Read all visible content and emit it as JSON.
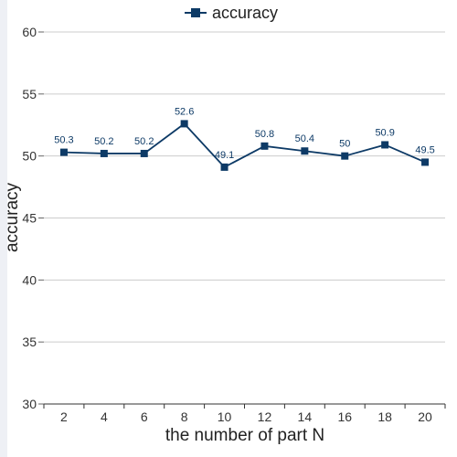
{
  "chart_data": {
    "type": "line",
    "title": "",
    "xlabel": "the number of part N",
    "ylabel": "accuracy",
    "x": [
      2,
      4,
      6,
      8,
      10,
      12,
      14,
      16,
      18,
      20
    ],
    "x_tick_labels": [
      "2",
      "4",
      "6",
      "8",
      "10",
      "12",
      "14",
      "16",
      "18",
      "20"
    ],
    "ylim": [
      30,
      60
    ],
    "y_ticks": [
      30,
      35,
      40,
      45,
      50,
      55,
      60
    ],
    "y_tick_labels": [
      "30",
      "35",
      "40",
      "45",
      "50",
      "55",
      "60"
    ],
    "grid": true,
    "legend_position": "top-center",
    "series": [
      {
        "name": "accuracy",
        "values": [
          50.3,
          50.2,
          50.2,
          52.6,
          49.1,
          50.8,
          50.4,
          50,
          50.9,
          49.5
        ],
        "data_labels": [
          "50.3",
          "50.2",
          "50.2",
          "52.6",
          "49.1",
          "50.8",
          "50.4",
          "50",
          "50.9",
          "49.5"
        ],
        "color": "#0d3a66",
        "marker": "square"
      }
    ]
  }
}
